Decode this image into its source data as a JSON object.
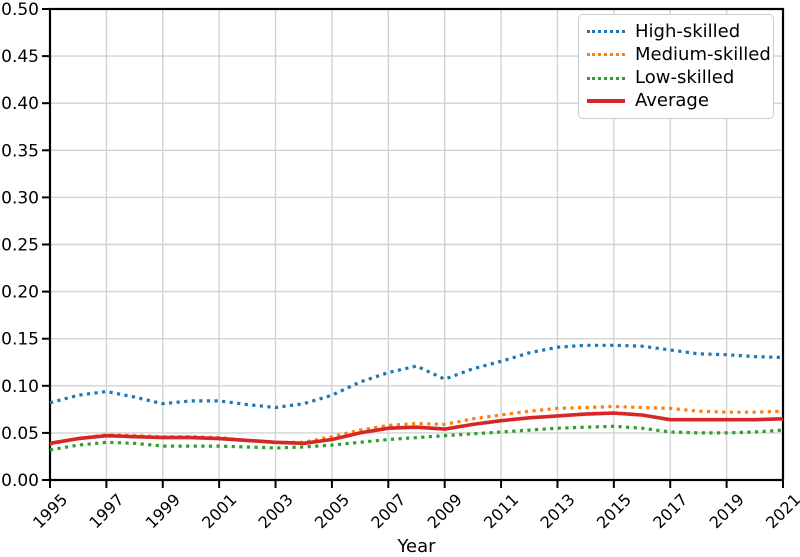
{
  "figure": {
    "background": "#ffffff",
    "frame_color": "#000000",
    "grid_color": "#d3d3d3"
  },
  "chart_data": {
    "type": "line",
    "title": "",
    "xlabel": "Year",
    "ylabel": "",
    "grid": true,
    "legend_position": "upper right",
    "xlim": [
      1995,
      2021
    ],
    "ylim": [
      0.0,
      0.5
    ],
    "x": [
      1995,
      1996,
      1997,
      1998,
      1999,
      2000,
      2001,
      2002,
      2003,
      2004,
      2005,
      2006,
      2007,
      2008,
      2009,
      2010,
      2011,
      2012,
      2013,
      2014,
      2015,
      2016,
      2017,
      2018,
      2019,
      2020,
      2021
    ],
    "x_ticks": [
      1995,
      1997,
      1999,
      2001,
      2003,
      2005,
      2007,
      2009,
      2011,
      2013,
      2015,
      2017,
      2019,
      2021
    ],
    "x_tick_labels": [
      "1995",
      "1997",
      "1999",
      "2001",
      "2003",
      "2005",
      "2007",
      "2009",
      "2011",
      "2013",
      "2015",
      "2017",
      "2019",
      "2021"
    ],
    "y_ticks": [
      0.0,
      0.05,
      0.1,
      0.15,
      0.2,
      0.25,
      0.3,
      0.35,
      0.4,
      0.45,
      0.5
    ],
    "y_tick_labels": [
      "0.00",
      "0.05",
      "0.10",
      "0.15",
      "0.20",
      "0.25",
      "0.30",
      "0.35",
      "0.40",
      "0.45",
      "0.50"
    ],
    "series": [
      {
        "name": "High-skilled",
        "color": "#1f77b4",
        "style": "dotted",
        "values": [
          0.082,
          0.09,
          0.094,
          0.088,
          0.081,
          0.084,
          0.084,
          0.08,
          0.077,
          0.081,
          0.09,
          0.104,
          0.114,
          0.121,
          0.107,
          0.118,
          0.126,
          0.135,
          0.141,
          0.143,
          0.143,
          0.142,
          0.138,
          0.134,
          0.133,
          0.131,
          0.13
        ]
      },
      {
        "name": "Medium-skilled",
        "color": "#ff7f0e",
        "style": "dotted",
        "values": [
          0.038,
          0.044,
          0.048,
          0.047,
          0.046,
          0.046,
          0.045,
          0.042,
          0.04,
          0.04,
          0.046,
          0.053,
          0.058,
          0.06,
          0.059,
          0.065,
          0.069,
          0.073,
          0.076,
          0.077,
          0.078,
          0.077,
          0.076,
          0.073,
          0.072,
          0.072,
          0.073
        ]
      },
      {
        "name": "Low-skilled",
        "color": "#2ca02c",
        "style": "dotted",
        "values": [
          0.032,
          0.037,
          0.04,
          0.039,
          0.036,
          0.036,
          0.036,
          0.035,
          0.034,
          0.035,
          0.037,
          0.04,
          0.043,
          0.045,
          0.047,
          0.049,
          0.051,
          0.053,
          0.055,
          0.056,
          0.057,
          0.055,
          0.051,
          0.05,
          0.05,
          0.051,
          0.053
        ]
      },
      {
        "name": "Average",
        "color": "#d62728",
        "style": "solid",
        "values": [
          0.039,
          0.044,
          0.047,
          0.046,
          0.045,
          0.045,
          0.044,
          0.042,
          0.04,
          0.039,
          0.043,
          0.05,
          0.055,
          0.056,
          0.054,
          0.059,
          0.063,
          0.066,
          0.068,
          0.07,
          0.071,
          0.069,
          0.064,
          0.064,
          0.064,
          0.064,
          0.065
        ]
      }
    ]
  }
}
